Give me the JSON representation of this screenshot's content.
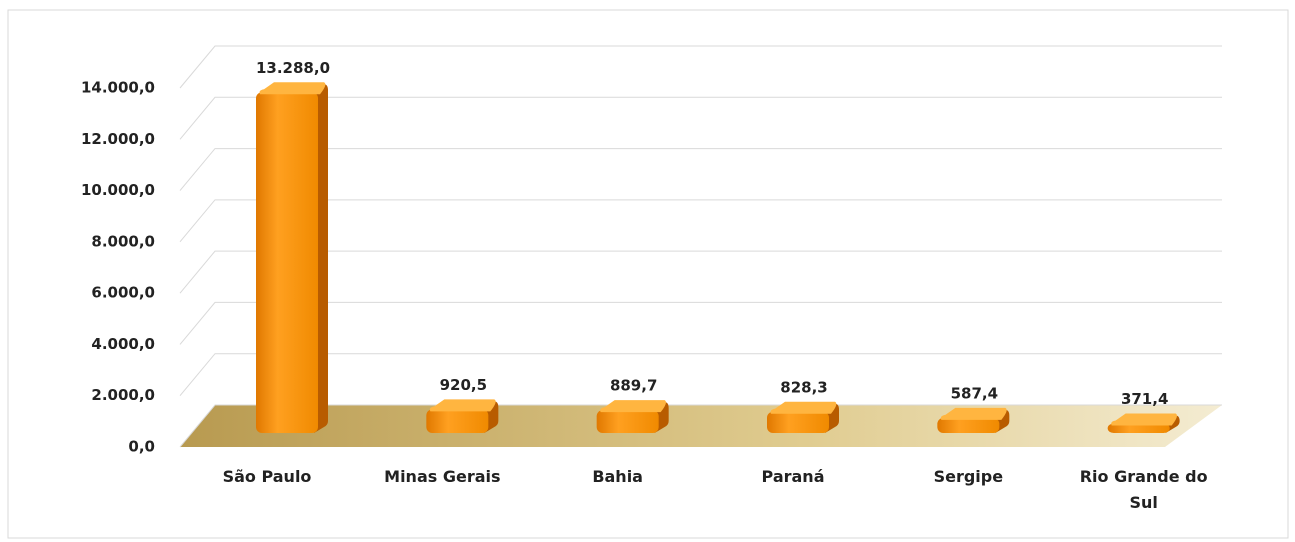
{
  "chart_data": {
    "type": "bar3d",
    "categories": [
      "São Paulo",
      "Minas Gerais",
      "Bahia",
      "Paraná",
      "Sergipe",
      "Rio Grande do Sul"
    ],
    "values": [
      13288,
      920.5,
      889.7,
      828.3,
      587.4,
      371.4
    ],
    "value_labels": [
      "13.288,0",
      "920,5",
      "889,7",
      "828,3",
      "587,4",
      "371,4"
    ],
    "color": "#ff9500",
    "ylim": [
      0,
      14000
    ],
    "yticks": [
      {
        "value": 0,
        "label": "0,0"
      },
      {
        "value": 2000,
        "label": "2.000,0"
      },
      {
        "value": 4000,
        "label": "4.000,0"
      },
      {
        "value": 6000,
        "label": "6.000,0"
      },
      {
        "value": 8000,
        "label": "8.000,0"
      },
      {
        "value": 10000,
        "label": "10.000,0"
      },
      {
        "value": 12000,
        "label": "12.000,0"
      },
      {
        "value": 14000,
        "label": "14.000,0"
      }
    ],
    "grid": true
  }
}
